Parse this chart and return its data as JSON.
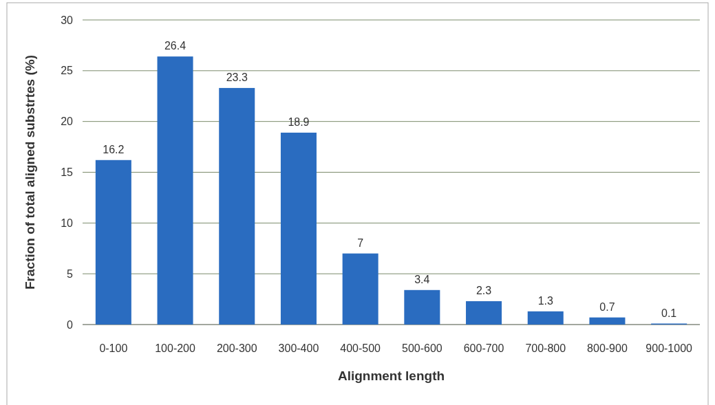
{
  "chart_data": {
    "type": "bar",
    "xlabel": "Alignment length",
    "ylabel": "Fraction of total aligned substrtes (%)",
    "categories": [
      "0-100",
      "100-200",
      "200-300",
      "300-400",
      "400-500",
      "500-600",
      "600-700",
      "700-800",
      "800-900",
      "900-1000"
    ],
    "values": [
      16.2,
      26.4,
      23.3,
      18.9,
      7,
      3.4,
      2.3,
      1.3,
      0.7,
      0.1
    ],
    "color": "#2a6cc0",
    "ylim": [
      0,
      30
    ],
    "yticks": [
      0,
      5,
      10,
      15,
      20,
      25,
      30
    ],
    "grid": "y",
    "data_labels": true
  }
}
